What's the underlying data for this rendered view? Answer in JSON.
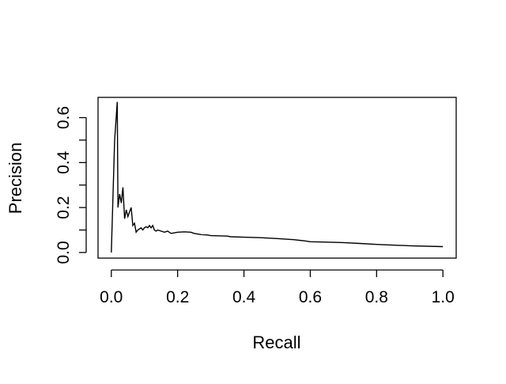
{
  "chart_data": {
    "type": "line",
    "title": "",
    "xlabel": "Recall",
    "ylabel": "Precision",
    "xlim": [
      -0.04,
      1.04
    ],
    "ylim": [
      -0.025,
      0.69
    ],
    "xticks": [
      0.0,
      0.2,
      0.4,
      0.6,
      0.8,
      1.0
    ],
    "xtick_labels": [
      "0.0",
      "0.2",
      "0.4",
      "0.6",
      "0.8",
      "1.0"
    ],
    "yticks": [
      0.0,
      0.1,
      0.2,
      0.3,
      0.4,
      0.5,
      0.6
    ],
    "ytick_labels": [
      "0.0",
      "",
      "0.2",
      "",
      "0.4",
      "",
      "0.6"
    ],
    "grid": false,
    "legend": "none",
    "line_color": "#000000",
    "series": [
      {
        "x": [
          0.0,
          0.01,
          0.018,
          0.02,
          0.025,
          0.03,
          0.035,
          0.04,
          0.045,
          0.05,
          0.055,
          0.06,
          0.065,
          0.07,
          0.075,
          0.08,
          0.09,
          0.095,
          0.1,
          0.105,
          0.11,
          0.115,
          0.12,
          0.125,
          0.13,
          0.135,
          0.14,
          0.16,
          0.17,
          0.18,
          0.2,
          0.22,
          0.24,
          0.25,
          0.27,
          0.29,
          0.3,
          0.35,
          0.36,
          0.4,
          0.45,
          0.5,
          0.55,
          0.58,
          0.6,
          0.65,
          0.7,
          0.75,
          0.8,
          0.9,
          1.0
        ],
        "y": [
          0.0,
          0.5,
          0.67,
          0.2,
          0.26,
          0.22,
          0.29,
          0.15,
          0.19,
          0.16,
          0.18,
          0.2,
          0.12,
          0.13,
          0.09,
          0.1,
          0.11,
          0.1,
          0.11,
          0.115,
          0.11,
          0.12,
          0.11,
          0.12,
          0.1,
          0.095,
          0.1,
          0.09,
          0.095,
          0.085,
          0.09,
          0.092,
          0.09,
          0.085,
          0.08,
          0.078,
          0.075,
          0.073,
          0.07,
          0.068,
          0.066,
          0.062,
          0.057,
          0.052,
          0.048,
          0.046,
          0.044,
          0.04,
          0.036,
          0.03,
          0.026
        ]
      }
    ]
  }
}
